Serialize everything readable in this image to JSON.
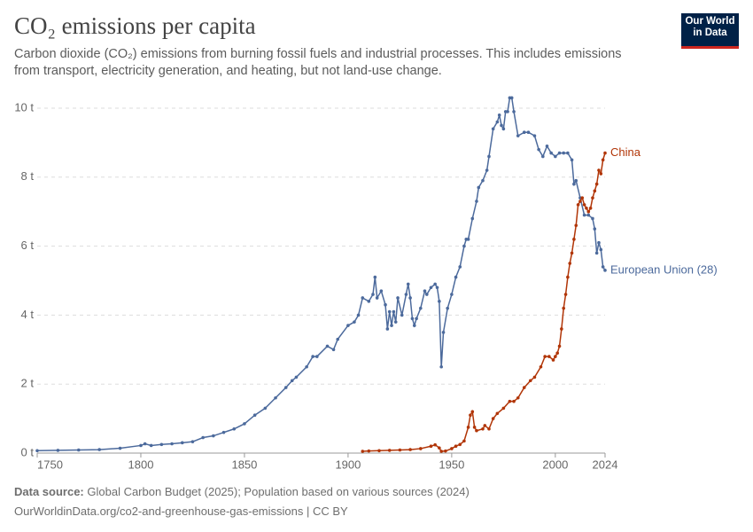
{
  "logo": [
    "Our World",
    "in Data"
  ],
  "chart_data": {
    "type": "line",
    "title": "CO₂ emissions per capita",
    "subtitle": "Carbon dioxide (CO₂) emissions from burning fossil fuels and industrial processes. This includes emissions from transport, electricity generation, and heating, but not land-use change.",
    "source_label": "Data source:",
    "source": "Global Carbon Budget (2025); Population based on various sources (2024)",
    "url_line": "OurWorldinData.org/co2-and-greenhouse-gas-emissions | CC BY",
    "xlim": [
      1750,
      2024
    ],
    "xticks": [
      1750,
      1800,
      1850,
      1900,
      1950,
      2000,
      2024
    ],
    "ylim": [
      0,
      10
    ],
    "yticks": [
      {
        "value": 0,
        "label": "0 t"
      },
      {
        "value": 2,
        "label": "2 t"
      },
      {
        "value": 4,
        "label": "4 t"
      },
      {
        "value": 6,
        "label": "6 t"
      },
      {
        "value": 8,
        "label": "8 t"
      },
      {
        "value": 10,
        "label": "10 t"
      }
    ],
    "grid": true,
    "series": [
      {
        "name": "European Union (28)",
        "color": "#4c6a9c",
        "x": [
          1750,
          1760,
          1770,
          1780,
          1790,
          1800,
          1802,
          1805,
          1810,
          1815,
          1820,
          1825,
          1830,
          1835,
          1840,
          1845,
          1850,
          1855,
          1860,
          1865,
          1870,
          1873,
          1875,
          1880,
          1883,
          1885,
          1890,
          1893,
          1895,
          1900,
          1903,
          1905,
          1907,
          1910,
          1912,
          1913,
          1914,
          1916,
          1918,
          1919,
          1920,
          1921,
          1922,
          1923,
          1924,
          1926,
          1928,
          1929,
          1930,
          1931,
          1932,
          1933,
          1935,
          1937,
          1938,
          1940,
          1942,
          1943,
          1944,
          1945,
          1946,
          1948,
          1950,
          1952,
          1954,
          1956,
          1957,
          1958,
          1960,
          1962,
          1963,
          1965,
          1967,
          1968,
          1970,
          1972,
          1973,
          1974,
          1975,
          1976,
          1977,
          1978,
          1979,
          1980,
          1982,
          1985,
          1987,
          1990,
          1992,
          1994,
          1996,
          1998,
          2000,
          2002,
          2004,
          2006,
          2008,
          2009,
          2010,
          2012,
          2014,
          2016,
          2018,
          2019,
          2020,
          2021,
          2022,
          2023,
          2024
        ],
        "values": [
          0.07,
          0.08,
          0.09,
          0.1,
          0.14,
          0.22,
          0.27,
          0.22,
          0.25,
          0.27,
          0.3,
          0.33,
          0.45,
          0.5,
          0.6,
          0.7,
          0.85,
          1.1,
          1.3,
          1.6,
          1.9,
          2.1,
          2.2,
          2.5,
          2.8,
          2.8,
          3.1,
          3.0,
          3.3,
          3.7,
          3.8,
          4.0,
          4.5,
          4.4,
          4.6,
          5.1,
          4.5,
          4.7,
          4.3,
          3.6,
          4.1,
          3.7,
          4.1,
          3.8,
          4.5,
          4.0,
          4.6,
          4.9,
          4.5,
          3.9,
          3.7,
          3.9,
          4.2,
          4.7,
          4.6,
          4.8,
          4.9,
          4.8,
          4.4,
          2.5,
          3.5,
          4.2,
          4.6,
          5.1,
          5.4,
          6.0,
          6.2,
          6.2,
          6.8,
          7.3,
          7.7,
          7.9,
          8.2,
          8.6,
          9.4,
          9.6,
          9.8,
          9.5,
          9.4,
          9.9,
          9.9,
          10.3,
          10.3,
          9.9,
          9.2,
          9.3,
          9.3,
          9.2,
          8.8,
          8.6,
          8.9,
          8.7,
          8.6,
          8.7,
          8.7,
          8.7,
          8.5,
          7.8,
          7.9,
          7.4,
          6.9,
          6.9,
          6.8,
          6.5,
          5.8,
          6.1,
          5.9,
          5.4,
          5.3
        ]
      },
      {
        "name": "China",
        "color": "#b13507",
        "x": [
          1907,
          1910,
          1915,
          1920,
          1925,
          1930,
          1935,
          1940,
          1942,
          1944,
          1945,
          1947,
          1950,
          1952,
          1954,
          1956,
          1958,
          1959,
          1960,
          1961,
          1962,
          1965,
          1966,
          1968,
          1970,
          1972,
          1975,
          1978,
          1980,
          1982,
          1985,
          1988,
          1990,
          1993,
          1995,
          1997,
          1999,
          2000,
          2001,
          2002,
          2003,
          2004,
          2005,
          2006,
          2007,
          2008,
          2009,
          2010,
          2011,
          2012,
          2013,
          2014,
          2015,
          2016,
          2017,
          2018,
          2019,
          2020,
          2021,
          2022,
          2023,
          2024
        ],
        "values": [
          0.05,
          0.06,
          0.07,
          0.08,
          0.09,
          0.1,
          0.13,
          0.2,
          0.24,
          0.15,
          0.05,
          0.06,
          0.13,
          0.2,
          0.25,
          0.35,
          0.75,
          1.1,
          1.2,
          0.75,
          0.65,
          0.7,
          0.8,
          0.7,
          1.0,
          1.15,
          1.3,
          1.5,
          1.5,
          1.6,
          1.9,
          2.1,
          2.2,
          2.5,
          2.8,
          2.8,
          2.7,
          2.8,
          2.9,
          3.1,
          3.6,
          4.2,
          4.6,
          5.1,
          5.5,
          5.8,
          6.2,
          6.6,
          7.2,
          7.3,
          7.4,
          7.2,
          7.1,
          7.0,
          7.1,
          7.4,
          7.6,
          7.8,
          8.2,
          8.1,
          8.5,
          8.7
        ]
      }
    ]
  }
}
